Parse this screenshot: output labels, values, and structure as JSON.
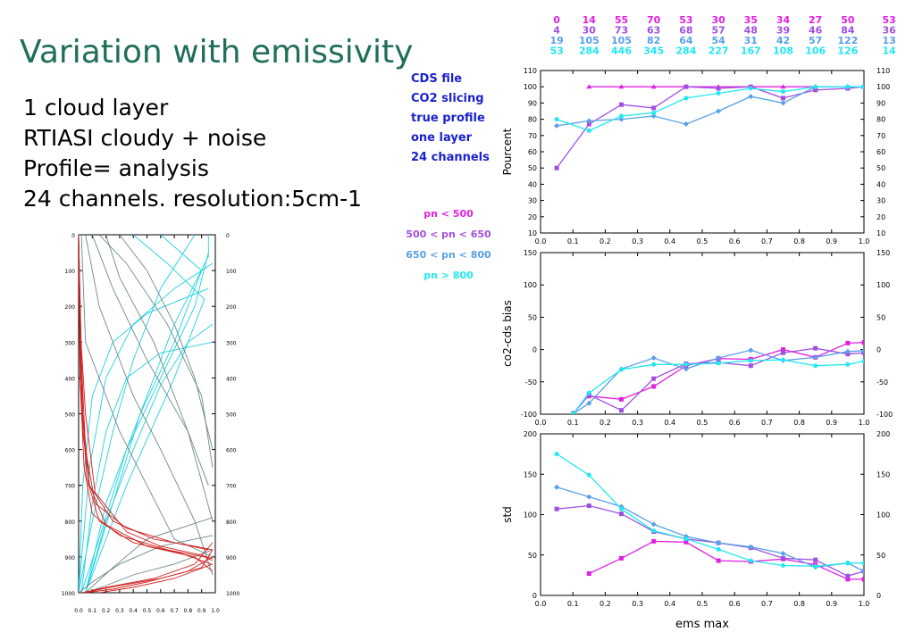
{
  "title": "Variation with emissivity",
  "info_lines": [
    "1 cloud layer",
    "RTIASI cloudy + noise",
    "Profile= analysis",
    "24 channels. resolution:5cm-1"
  ],
  "legend_lines": [
    "CDS file",
    "CO2 slicing",
    "true profile",
    "one layer",
    "24 channels"
  ],
  "pn_legend": [
    {
      "label": "pn < 500",
      "color": "#e020e0"
    },
    {
      "label": "500 < pn < 650",
      "color": "#a050e0"
    },
    {
      "label": "650 < pn < 800",
      "color": "#5aa0e8"
    },
    {
      "label": "pn > 800",
      "color": "#20e8f0"
    }
  ],
  "counts": [
    {
      "color": "#e020e0",
      "values": [
        "0",
        "14",
        "55",
        "70",
        "53",
        "30",
        "35",
        "34",
        "27",
        "50",
        "53"
      ]
    },
    {
      "color": "#a050e0",
      "values": [
        "4",
        "30",
        "73",
        "63",
        "68",
        "57",
        "48",
        "39",
        "46",
        "84",
        "36"
      ]
    },
    {
      "color": "#5aa0e8",
      "values": [
        "19",
        "105",
        "105",
        "82",
        "64",
        "54",
        "31",
        "42",
        "57",
        "122",
        "13"
      ]
    },
    {
      "color": "#20e8f0",
      "values": [
        "53",
        "284",
        "446",
        "345",
        "284",
        "227",
        "167",
        "108",
        "106",
        "126",
        "14"
      ]
    }
  ],
  "chart_data": [
    {
      "type": "line",
      "ylabel": "Pourcent",
      "xlim": [
        0,
        1
      ],
      "ylim": [
        10,
        110
      ],
      "xticks": [
        "0.0",
        "0.1",
        "0.2",
        "0.3",
        "0.4",
        "0.5",
        "0.6",
        "0.7",
        "0.8",
        "0.9",
        "1.0"
      ],
      "yticks": [
        10,
        20,
        30,
        40,
        50,
        60,
        70,
        80,
        90,
        100,
        110
      ],
      "series": [
        {
          "color": "#e020e0",
          "x": [
            0.15,
            0.25,
            0.35,
            0.45,
            0.55,
            0.65,
            0.75,
            0.85,
            0.95,
            1.0
          ],
          "y": [
            100,
            100,
            100,
            100,
            100,
            100,
            100,
            100,
            100,
            100
          ]
        },
        {
          "color": "#a050e0",
          "x": [
            0.05,
            0.15,
            0.25,
            0.35,
            0.45,
            0.55,
            0.65,
            0.75,
            0.85,
            0.95,
            1.0
          ],
          "y": [
            50,
            77,
            89,
            87,
            100,
            99,
            100,
            93,
            98,
            99,
            100
          ]
        },
        {
          "color": "#5aa0e8",
          "x": [
            0.05,
            0.15,
            0.25,
            0.35,
            0.45,
            0.55,
            0.65,
            0.75,
            0.85,
            0.95,
            1.0
          ],
          "y": [
            76,
            79,
            80,
            82,
            77,
            85,
            94,
            90,
            100,
            100,
            100
          ]
        },
        {
          "color": "#20e8f0",
          "x": [
            0.05,
            0.15,
            0.25,
            0.35,
            0.45,
            0.55,
            0.65,
            0.75,
            0.85,
            0.95,
            1.0
          ],
          "y": [
            80,
            73,
            82,
            84,
            93,
            96,
            99,
            97,
            100,
            100,
            100
          ]
        }
      ]
    },
    {
      "type": "line",
      "ylabel": "co2-cds bias",
      "xlim": [
        0,
        1
      ],
      "ylim": [
        -100,
        150
      ],
      "xticks": [
        "0.0",
        "0.1",
        "0.2",
        "0.3",
        "0.4",
        "0.5",
        "0.6",
        "0.7",
        "0.8",
        "0.9",
        "1.0"
      ],
      "yticks": [
        -100,
        -50,
        0,
        50,
        100,
        150
      ],
      "series": [
        {
          "color": "#e020e0",
          "x": [
            0.15,
            0.25,
            0.35,
            0.45,
            0.55,
            0.65,
            0.75,
            0.85,
            0.95,
            1.0
          ],
          "y": [
            -72,
            -77,
            -57,
            -25,
            -14,
            -15,
            0,
            -12,
            10,
            11
          ]
        },
        {
          "color": "#a050e0",
          "x": [
            0.1,
            0.15,
            0.25,
            0.35,
            0.45,
            0.55,
            0.65,
            0.75,
            0.85,
            0.95,
            1.0
          ],
          "y": [
            -100,
            -70,
            -94,
            -45,
            -22,
            -20,
            -25,
            -5,
            2,
            -7,
            -5
          ]
        },
        {
          "color": "#5aa0e8",
          "x": [
            0.1,
            0.15,
            0.25,
            0.35,
            0.45,
            0.55,
            0.65,
            0.75,
            0.85,
            0.95,
            1.0
          ],
          "y": [
            -100,
            -83,
            -30,
            -13,
            -30,
            -13,
            -1,
            -17,
            -12,
            -3,
            -2
          ]
        },
        {
          "color": "#20e8f0",
          "x": [
            0.1,
            0.15,
            0.25,
            0.35,
            0.45,
            0.55,
            0.65,
            0.75,
            0.85,
            0.95,
            1.0
          ],
          "y": [
            -100,
            -67,
            -31,
            -23,
            -23,
            -21,
            -17,
            -16,
            -25,
            -23,
            -18
          ]
        }
      ]
    },
    {
      "type": "line",
      "ylabel": "std",
      "xlabel": "ems max",
      "xlim": [
        0,
        1
      ],
      "ylim": [
        0,
        200
      ],
      "xticks": [
        "0.0",
        "0.1",
        "0.2",
        "0.3",
        "0.4",
        "0.5",
        "0.6",
        "0.7",
        "0.8",
        "0.9",
        "1.0"
      ],
      "yticks": [
        0,
        50,
        100,
        150,
        200
      ],
      "series": [
        {
          "color": "#e020e0",
          "x": [
            0.15,
            0.25,
            0.35,
            0.45,
            0.55,
            0.65,
            0.75,
            0.85,
            0.95,
            1.0
          ],
          "y": [
            27,
            46,
            67,
            66,
            43,
            42,
            45,
            38,
            20,
            20
          ]
        },
        {
          "color": "#a050e0",
          "x": [
            0.05,
            0.15,
            0.25,
            0.35,
            0.45,
            0.55,
            0.65,
            0.75,
            0.85,
            0.95,
            1.0
          ],
          "y": [
            107,
            111,
            101,
            79,
            70,
            65,
            59,
            46,
            44,
            24,
            30
          ]
        },
        {
          "color": "#5aa0e8",
          "x": [
            0.05,
            0.15,
            0.25,
            0.35,
            0.45,
            0.55,
            0.65,
            0.75,
            0.85,
            0.95,
            1.0
          ],
          "y": [
            134,
            122,
            110,
            88,
            73,
            65,
            60,
            52,
            35,
            40,
            30
          ]
        },
        {
          "color": "#20e8f0",
          "x": [
            0.05,
            0.15,
            0.25,
            0.35,
            0.45,
            0.55,
            0.65,
            0.75,
            0.85,
            0.95,
            1.0
          ],
          "y": [
            175,
            149,
            107,
            80,
            70,
            57,
            43,
            37,
            36,
            40,
            40
          ]
        }
      ]
    },
    {
      "type": "line",
      "xlim": [
        0,
        1
      ],
      "ylim": [
        1000,
        0
      ],
      "xticks": [
        "0.0",
        "0.1",
        "0.2",
        "0.3",
        "0.4",
        "0.5",
        "0.6",
        "0.7",
        "0.8",
        "0.9",
        "1.0"
      ],
      "yticks": [
        0,
        100,
        200,
        300,
        400,
        500,
        600,
        700,
        800,
        900,
        1000
      ],
      "series": [
        {
          "color": "#20d0e0",
          "x": [
            0.85,
            0.6,
            0.4,
            0.25,
            0.1,
            0.0
          ],
          "y": [
            0,
            150,
            350,
            550,
            800,
            1000
          ]
        },
        {
          "color": "#20d0e0",
          "x": [
            0.95,
            0.85,
            0.6,
            0.35,
            0.15,
            0.02
          ],
          "y": [
            50,
            200,
            400,
            600,
            850,
            1000
          ]
        },
        {
          "color": "#20d0e0",
          "x": [
            0.6,
            0.9,
            0.7,
            0.45,
            0.2,
            0.05
          ],
          "y": [
            0,
            100,
            300,
            500,
            750,
            1000
          ]
        },
        {
          "color": "#20d0e0",
          "x": [
            0.98,
            0.7,
            0.4,
            0.2,
            0.08,
            0.0
          ],
          "y": [
            80,
            150,
            250,
            400,
            650,
            1000
          ]
        },
        {
          "color": "#20d0e0",
          "x": [
            0.95,
            0.5,
            0.25,
            0.1,
            0.03,
            0.0
          ],
          "y": [
            150,
            220,
            300,
            450,
            700,
            1000
          ]
        },
        {
          "color": "#20d0e0",
          "x": [
            0.98,
            0.8,
            0.6,
            0.4,
            0.2,
            0.05
          ],
          "y": [
            250,
            300,
            420,
            600,
            800,
            1000
          ]
        },
        {
          "color": "#20d0e0",
          "x": [
            0.4,
            0.65,
            0.92,
            0.7,
            0.35,
            0.05
          ],
          "y": [
            0,
            80,
            180,
            400,
            700,
            1000
          ]
        },
        {
          "color": "#20d0e0",
          "x": [
            0.98,
            0.6,
            0.35,
            0.2,
            0.1,
            0.02
          ],
          "y": [
            300,
            330,
            400,
            550,
            750,
            1000
          ]
        },
        {
          "color": "#20d0e0",
          "x": [
            0.95,
            0.95,
            0.7,
            0.45,
            0.25,
            0.05
          ],
          "y": [
            0,
            60,
            250,
            500,
            750,
            1000
          ]
        },
        {
          "color": "#708888",
          "x": [
            0.1,
            0.25,
            0.5,
            0.8,
            0.98
          ],
          "y": [
            0,
            150,
            350,
            550,
            800
          ]
        },
        {
          "color": "#708888",
          "x": [
            0.2,
            0.3,
            0.55,
            0.75,
            0.95
          ],
          "y": [
            0,
            120,
            300,
            500,
            700
          ]
        },
        {
          "color": "#708888",
          "x": [
            0.15,
            0.35,
            0.65,
            0.9,
            0.98
          ],
          "y": [
            0,
            80,
            250,
            450,
            650
          ]
        },
        {
          "color": "#708888",
          "x": [
            0.05,
            0.15,
            0.4,
            0.6,
            0.85,
            0.98
          ],
          "y": [
            0,
            200,
            450,
            600,
            800,
            950
          ]
        },
        {
          "color": "#708888",
          "x": [
            0.3,
            0.5,
            0.7,
            0.85,
            0.98
          ],
          "y": [
            0,
            100,
            250,
            400,
            600
          ]
        },
        {
          "color": "#708888",
          "x": [
            0.02,
            0.05,
            0.3,
            0.5,
            0.7,
            0.98
          ],
          "y": [
            0,
            300,
            550,
            700,
            850,
            900
          ]
        },
        {
          "color": "#708888",
          "x": [
            0.98,
            0.7,
            0.4,
            0.2,
            0.05
          ],
          "y": [
            880,
            920,
            950,
            980,
            1000
          ]
        },
        {
          "color": "#708888",
          "x": [
            0.98,
            0.6,
            0.3,
            0.1,
            0.0
          ],
          "y": [
            840,
            870,
            920,
            970,
            1000
          ]
        },
        {
          "color": "#708888",
          "x": [
            0.98,
            0.5,
            0.25,
            0.05
          ],
          "y": [
            790,
            850,
            930,
            1000
          ]
        },
        {
          "color": "#d02020",
          "x": [
            0.0,
            0.01,
            0.03,
            0.08,
            0.25,
            0.55,
            0.85,
            0.98
          ],
          "y": [
            0,
            300,
            550,
            700,
            800,
            850,
            870,
            880
          ]
        },
        {
          "color": "#d02020",
          "x": [
            0.0,
            0.02,
            0.05,
            0.12,
            0.35,
            0.7,
            0.95
          ],
          "y": [
            0,
            350,
            600,
            750,
            820,
            860,
            880
          ]
        },
        {
          "color": "#d02020",
          "x": [
            0.0,
            0.01,
            0.04,
            0.1,
            0.3,
            0.65,
            0.92,
            0.98
          ],
          "y": [
            0,
            400,
            650,
            780,
            840,
            880,
            900,
            910
          ]
        },
        {
          "color": "#d02020",
          "x": [
            0.0,
            0.02,
            0.06,
            0.15,
            0.4,
            0.75,
            0.97
          ],
          "y": [
            0,
            450,
            680,
            800,
            860,
            890,
            920
          ]
        },
        {
          "color": "#d02020",
          "x": [
            0.0,
            0.03,
            0.08,
            0.2,
            0.5,
            0.85,
            0.98
          ],
          "y": [
            0,
            500,
            700,
            810,
            870,
            900,
            940
          ]
        },
        {
          "color": "#d02020",
          "x": [
            0.0,
            0.01,
            0.05,
            0.12,
            0.35,
            0.6,
            0.9,
            0.98
          ],
          "y": [
            0,
            250,
            500,
            720,
            830,
            870,
            895,
            905
          ]
        },
        {
          "color": "#d02020",
          "x": [
            0.98,
            0.9,
            0.6,
            0.3,
            0.1,
            0.02
          ],
          "y": [
            880,
            930,
            960,
            980,
            995,
            1000
          ]
        },
        {
          "color": "#d02020",
          "x": [
            0.98,
            0.8,
            0.5,
            0.25,
            0.05
          ],
          "y": [
            900,
            940,
            970,
            990,
            1000
          ]
        },
        {
          "color": "#d02020",
          "x": [
            0.98,
            0.85,
            0.55,
            0.2,
            0.03
          ],
          "y": [
            860,
            920,
            960,
            985,
            1000
          ]
        },
        {
          "color": "#d02020",
          "x": [
            0.98,
            0.7,
            0.4,
            0.15
          ],
          "y": [
            920,
            960,
            985,
            1000
          ]
        }
      ]
    }
  ]
}
